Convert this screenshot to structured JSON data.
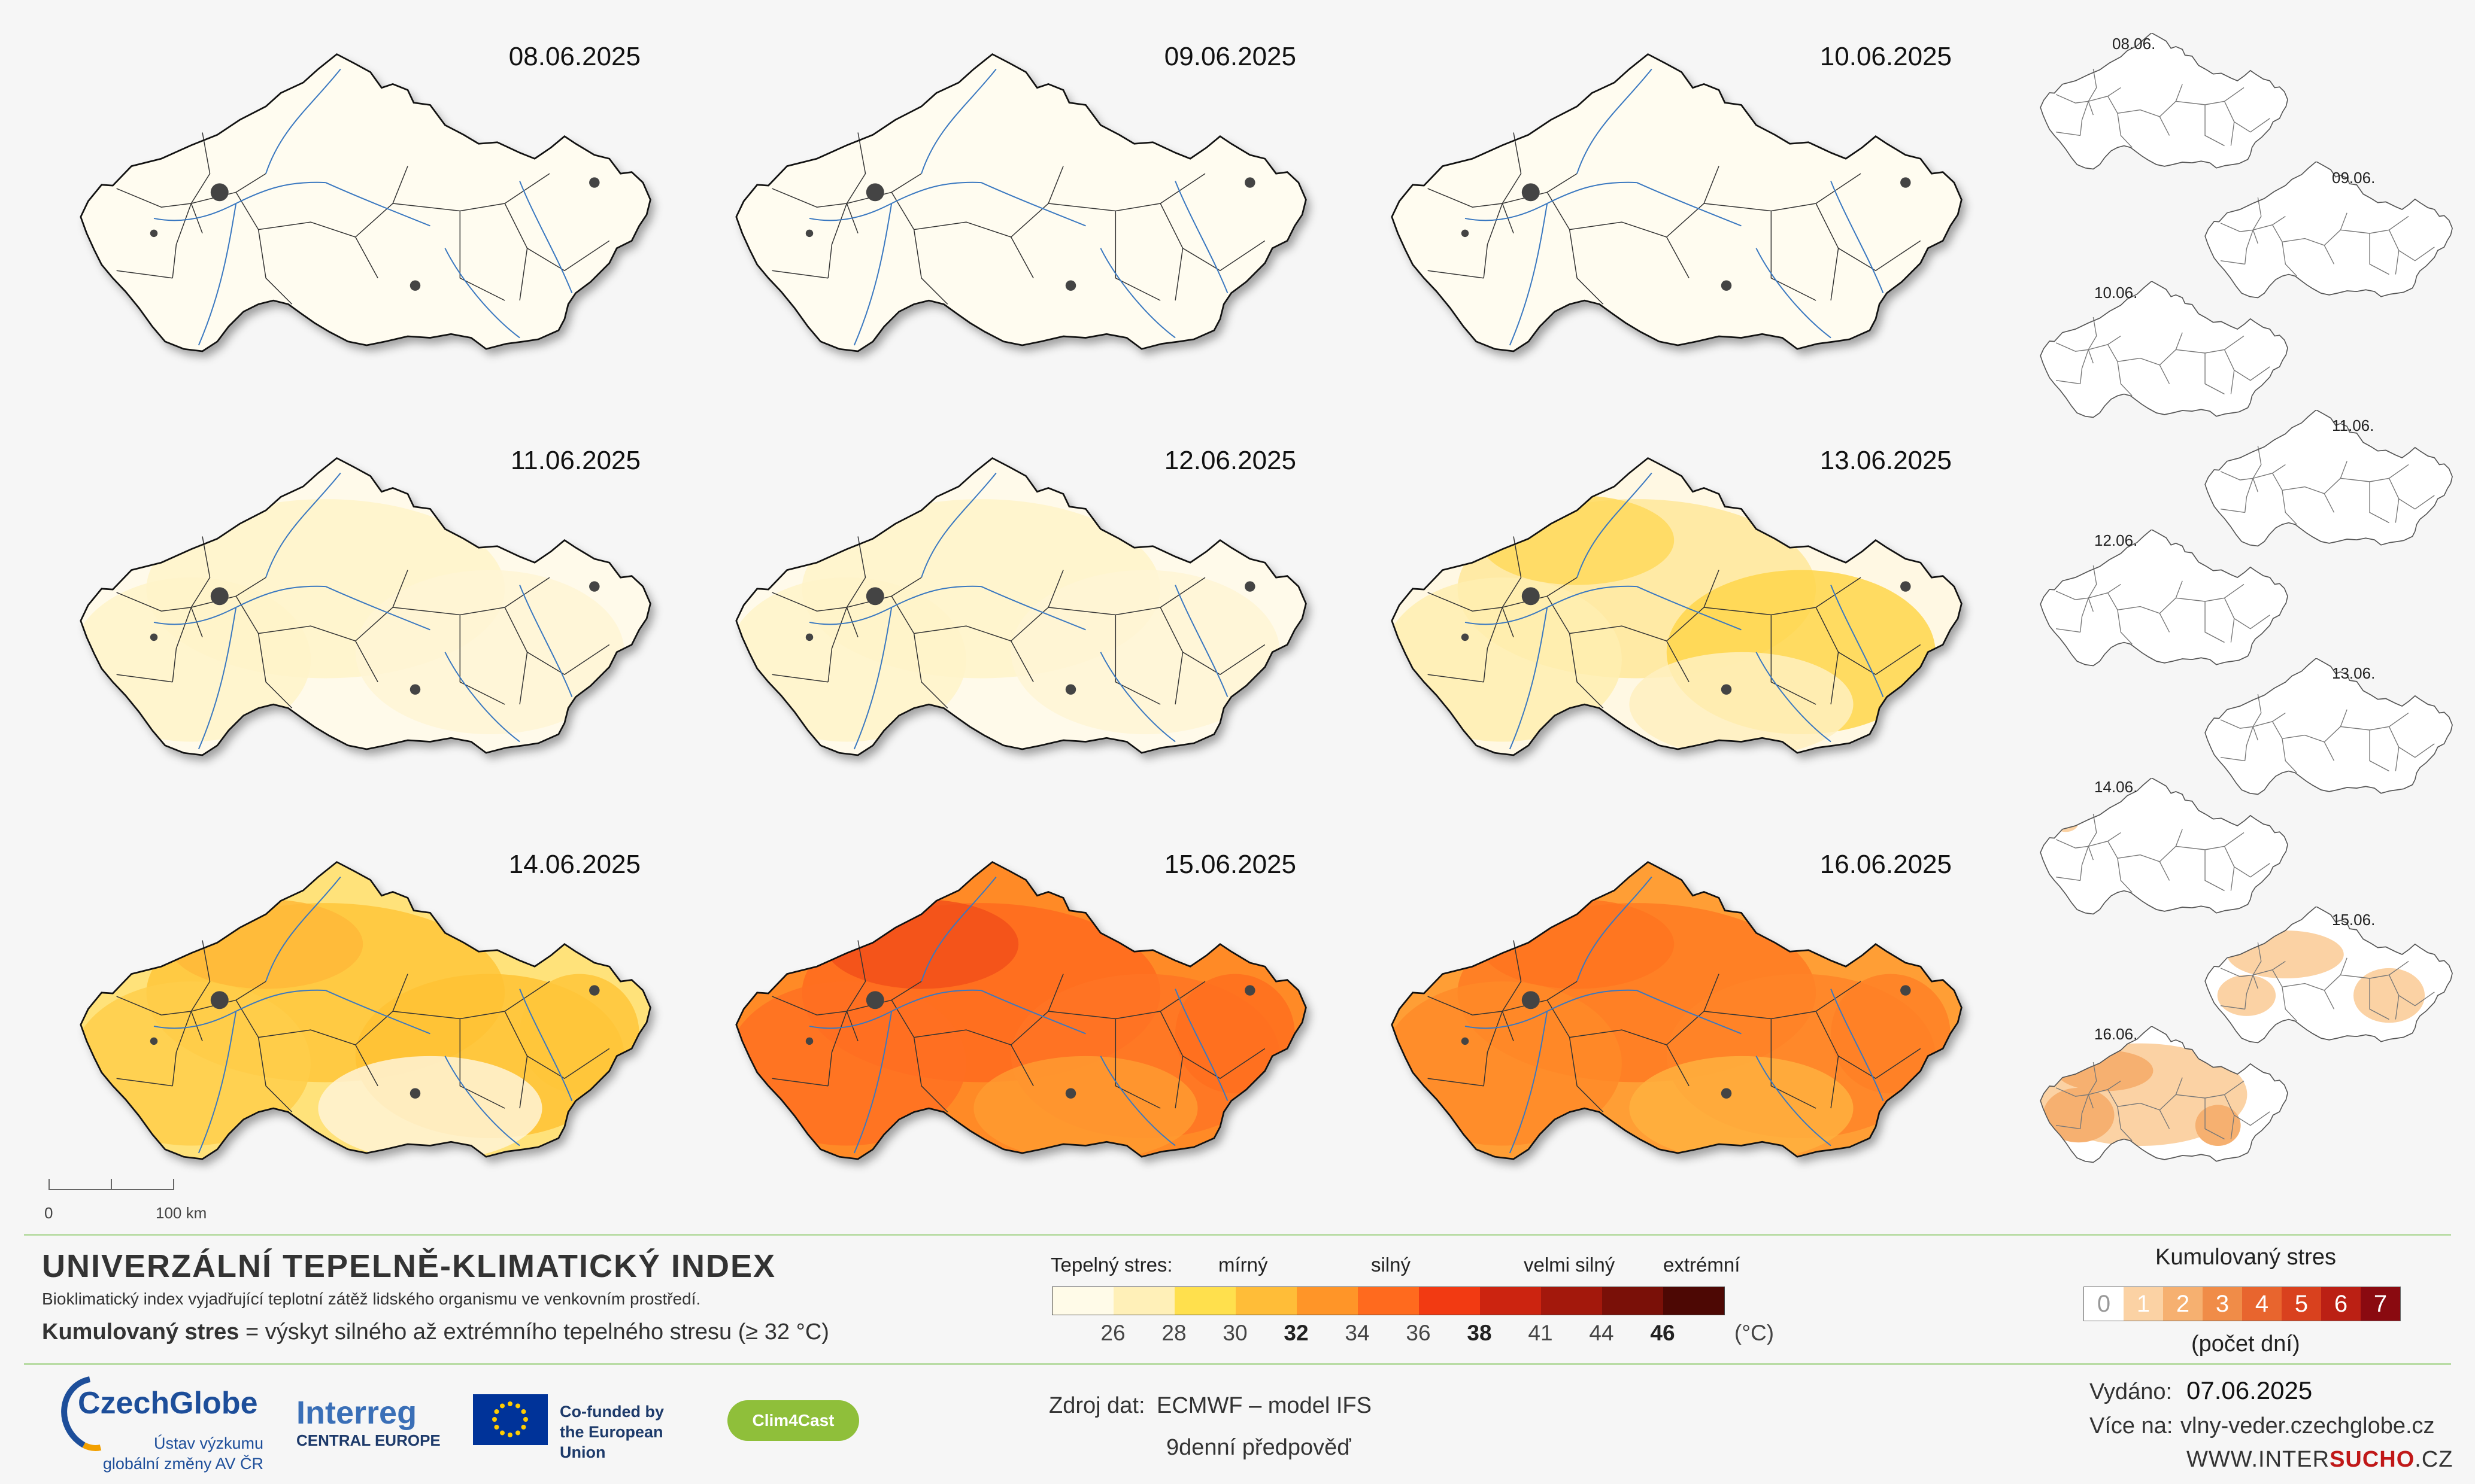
{
  "maps": [
    {
      "date": "08.06.2025",
      "level": 0
    },
    {
      "date": "09.06.2025",
      "level": 0
    },
    {
      "date": "10.06.2025",
      "level": 0
    },
    {
      "date": "11.06.2025",
      "level": 1
    },
    {
      "date": "12.06.2025",
      "level": 1
    },
    {
      "date": "13.06.2025",
      "level": 2
    },
    {
      "date": "14.06.2025",
      "level": 3
    },
    {
      "date": "15.06.2025",
      "level": 5
    },
    {
      "date": "16.06.2025",
      "level": 4
    }
  ],
  "mini_maps": [
    {
      "date": "08.06.",
      "cum": 0
    },
    {
      "date": "09.06.",
      "cum": 0
    },
    {
      "date": "10.06.",
      "cum": 0
    },
    {
      "date": "11.06.",
      "cum": 0
    },
    {
      "date": "12.06.",
      "cum": 0
    },
    {
      "date": "13.06.",
      "cum": 0
    },
    {
      "date": "14.06.",
      "cum": 1
    },
    {
      "date": "15.06.",
      "cum": 1
    },
    {
      "date": "16.06.",
      "cum": 2
    }
  ],
  "scale": {
    "zero": "0",
    "km": "100 km"
  },
  "title": "UNIVERZÁLNÍ TEPELNĚ-KLIMATICKÝ INDEX",
  "subtitle": "Bioklimatický index vyjadřující teplotní zátěž lidského organismu ve venkovním prostředí.",
  "cumulative_desc": {
    "term": "Kumulovaný stres",
    "rest": " = výskyt silného až extrémního tepelného stresu (≥ 32 °C)"
  },
  "legend": {
    "label": "Tepelný stres:",
    "categories": [
      "mírný",
      "silný",
      "velmi silný",
      "extrémní"
    ],
    "colors": [
      "#fffbe8",
      "#fff0b8",
      "#ffe04d",
      "#ffbd38",
      "#ff9528",
      "#ff6a1e",
      "#f23a12",
      "#cc2410",
      "#a3180c",
      "#7a1008",
      "#4d0804"
    ],
    "ticks": [
      "26",
      "28",
      "30",
      "32",
      "34",
      "36",
      "38",
      "41",
      "44",
      "46"
    ],
    "bold_ticks": [
      "32",
      "38",
      "46"
    ],
    "unit": "(°C)"
  },
  "cumulative_legend": {
    "title": "Kumulovaný stres",
    "values": [
      "0",
      "1",
      "2",
      "3",
      "4",
      "5",
      "6",
      "7"
    ],
    "colors": [
      "#ffffff",
      "#fbd2a4",
      "#f6b070",
      "#f08c48",
      "#e8652e",
      "#d9411e",
      "#bb2014",
      "#8a0a10"
    ],
    "unit": "(počet dní)"
  },
  "source": {
    "label": "Zdroj dat:",
    "value": "ECMWF – model IFS",
    "forecast": "9denní předpověď"
  },
  "issued": {
    "label": "Vydáno:",
    "value": "07.06.2025"
  },
  "more": {
    "label": "Více na:",
    "value": "vlny-veder.czechglobe.cz"
  },
  "intersucho": {
    "pre": "WWW.INTER",
    "bold": "SUCHO",
    "post": ".CZ"
  },
  "logos": {
    "czechglobe_name": "CzechGlobe",
    "czechglobe_sub1": "Ústav výzkumu",
    "czechglobe_sub2": "globální změny AV ČR",
    "interreg_name": "Interreg",
    "interreg_sub": "CENTRAL EUROPE",
    "eu_line1": "Co-funded by",
    "eu_line2": "the European Union",
    "clim4cast": "Clim4Cast"
  }
}
